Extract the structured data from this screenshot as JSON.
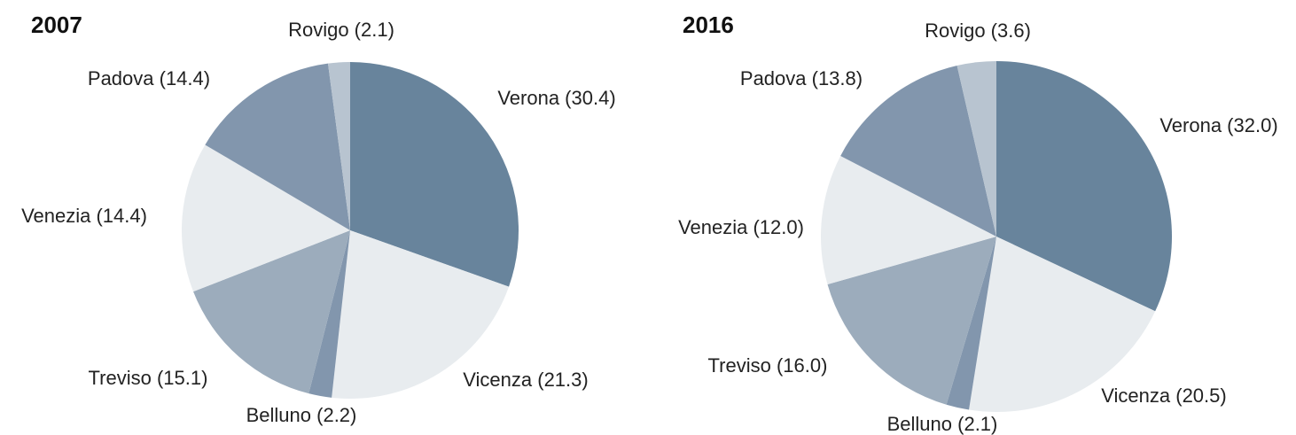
{
  "chart_data": [
    {
      "type": "pie",
      "title": "2007",
      "categories": [
        "Verona (30.4)",
        "Vicenza (21.3)",
        "Belluno (2.2)",
        "Treviso (15.1)",
        "Venezia (14.4)",
        "Padova (14.4)",
        "Rovigo (2.1)"
      ],
      "values": [
        30.4,
        21.3,
        2.2,
        15.1,
        14.4,
        14.4,
        2.1
      ],
      "colors": [
        "#68849c",
        "#e8ecef",
        "#8296ad",
        "#9cacbc",
        "#e8ecef",
        "#8296ad",
        "#b8c4d0"
      ]
    },
    {
      "type": "pie",
      "title": "2016",
      "categories": [
        "Verona (32.0)",
        "Vicenza (20.5)",
        "Belluno (2.1)",
        "Treviso (16.0)",
        "Venezia (12.0)",
        "Padova (13.8)",
        "Rovigo (3.6)"
      ],
      "values": [
        32.0,
        20.5,
        2.1,
        16.0,
        12.0,
        13.8,
        3.6
      ],
      "colors": [
        "#68849c",
        "#e8ecef",
        "#8296ad",
        "#9cacbc",
        "#e8ecef",
        "#8296ad",
        "#b8c4d0"
      ]
    }
  ]
}
